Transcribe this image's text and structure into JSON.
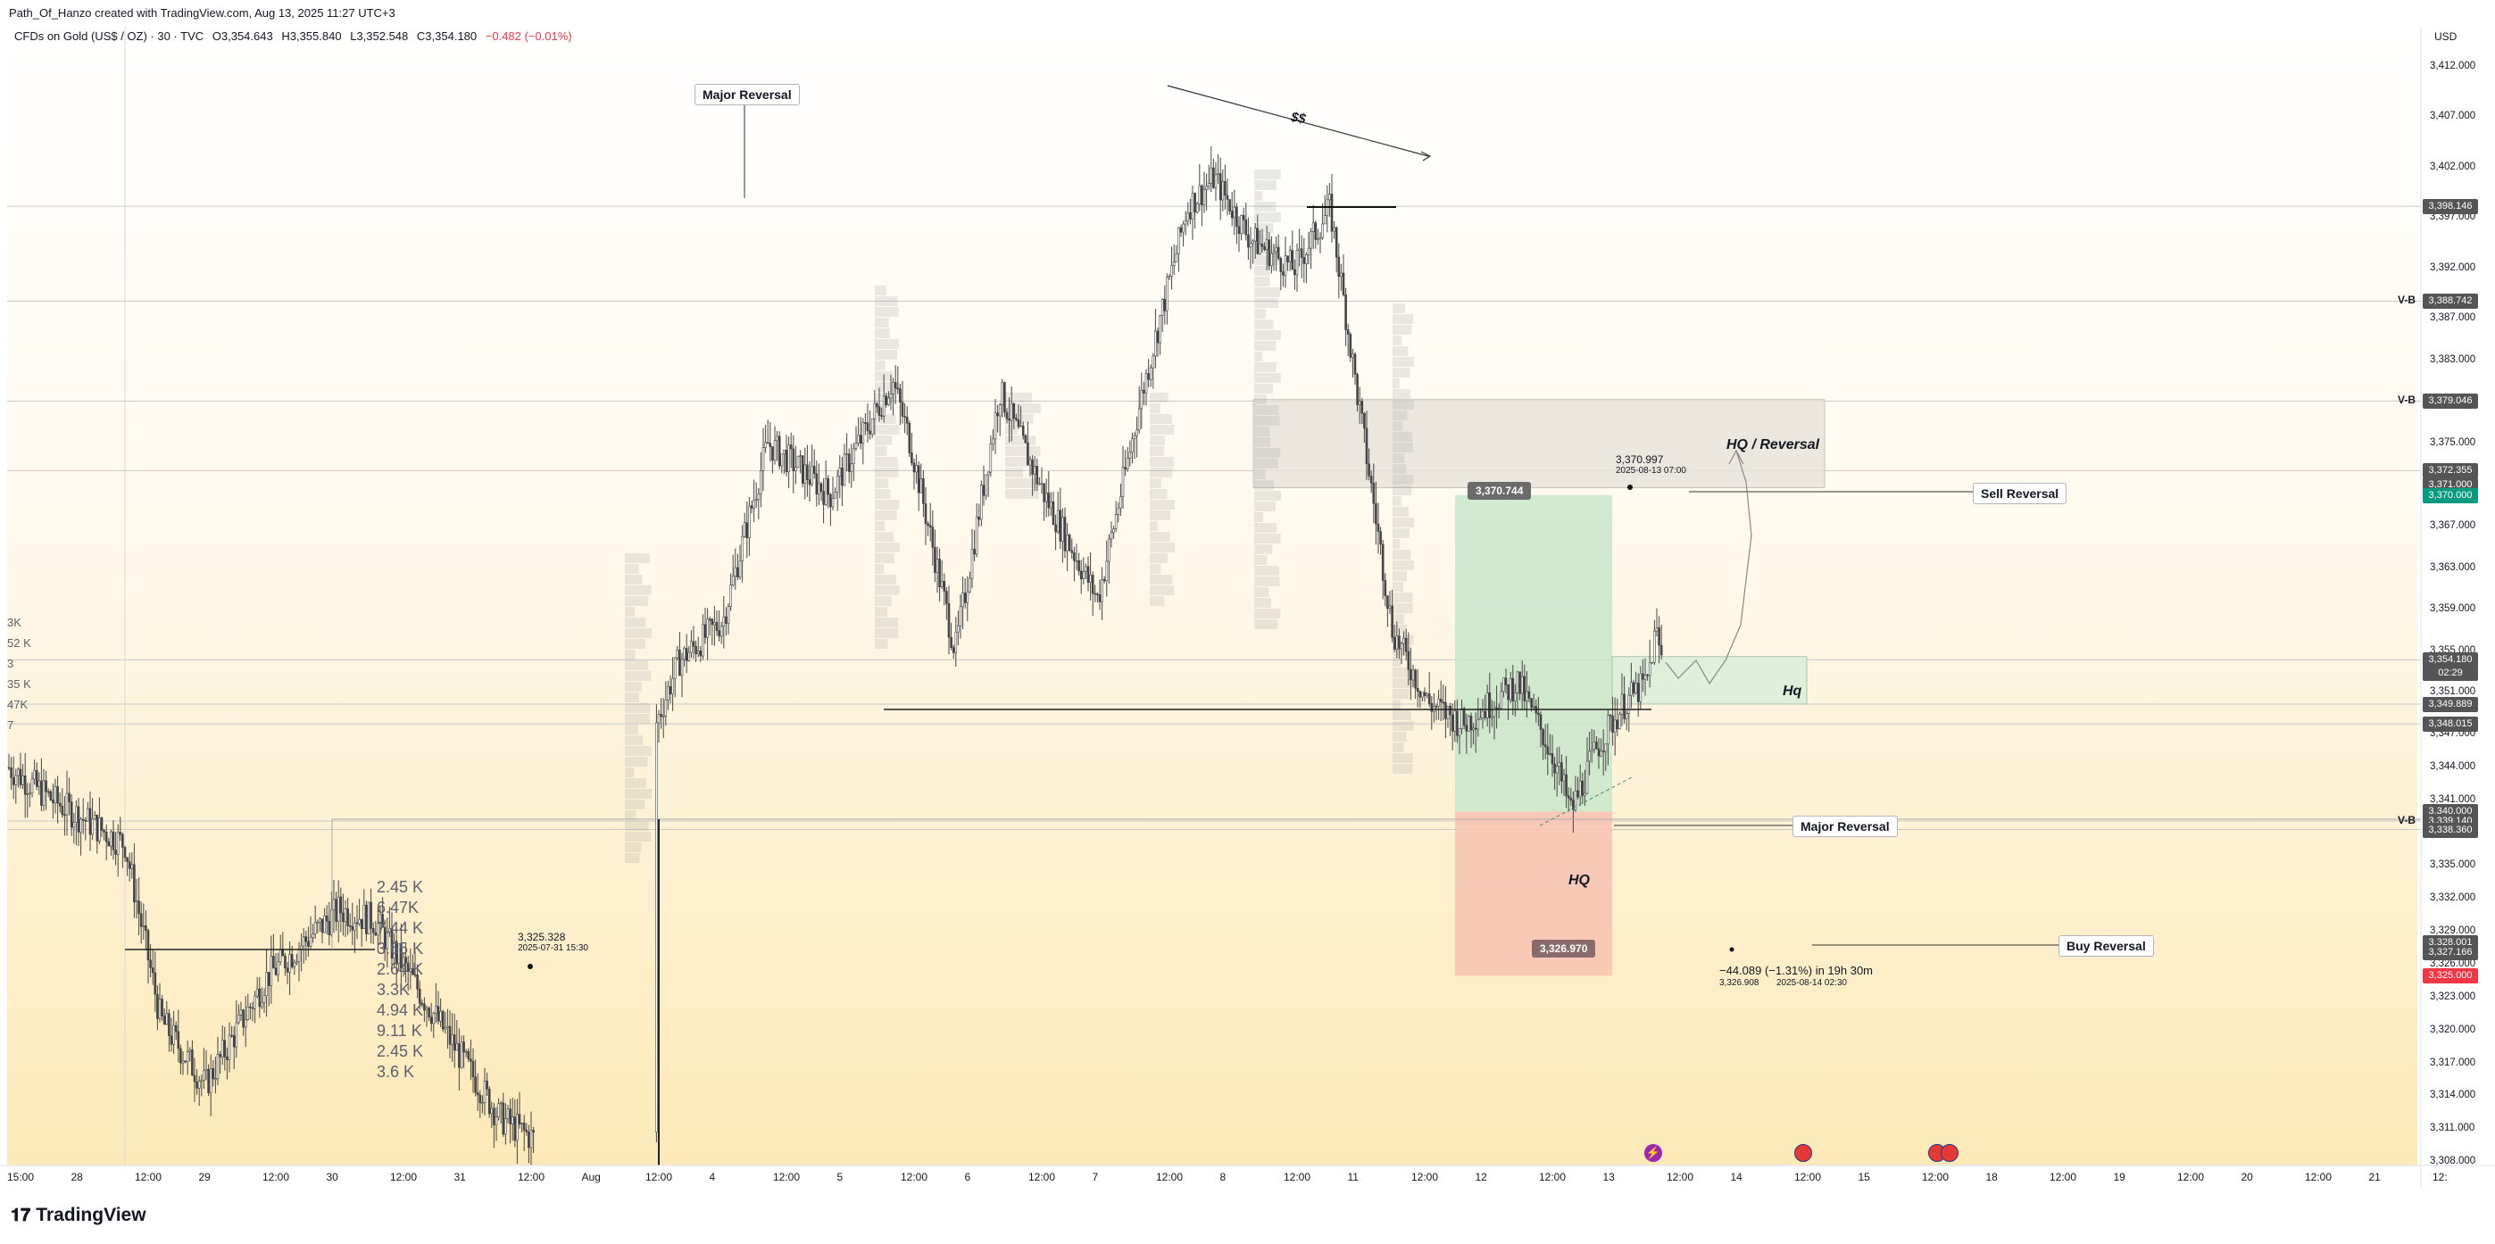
{
  "header": {
    "credit": "Path_Of_Hanzo created with TradingView.com, Aug 13, 2025 11:27 UTC+3"
  },
  "legend": {
    "symbol": "CFDs on Gold (US$ / OZ) · 30 · TVC",
    "open": "O3,354.643",
    "high": "H3,355.840",
    "low": "L3,352.548",
    "close": "C3,354.180",
    "change": "−0.482 (−0.01%)"
  },
  "footer": {
    "brand": "TradingView"
  },
  "colors": {
    "candle": "#444444",
    "profit_zone": "#c8e6c9",
    "loss_zone": "#f8c4b4",
    "supply_zone": "#e6e2da",
    "hq_zone": "#dbeed9",
    "bg_bottom": "#fde9b8",
    "price_up": "#089981",
    "price_down": "#f23645"
  },
  "chart_data": {
    "type": "candlestick",
    "currency": "USD",
    "ylim": [
      3306,
      3414
    ],
    "price_axis_ticks": [
      3412,
      3407,
      3402,
      3397,
      3392,
      3387,
      3383,
      3379,
      3375,
      3371,
      3367,
      3363,
      3359,
      3355,
      3351,
      3347,
      3344,
      3341,
      3338,
      3335,
      3332,
      3329,
      3326,
      3323,
      3320,
      3317,
      3314,
      3311,
      3308
    ],
    "price_axis_labels": [
      "3,412.000",
      "3,407.000",
      "3,402.000",
      "3,397.000",
      "3,392.000",
      "3,387.000",
      "3,383.000",
      "3,379.000",
      "3,375.000",
      "3,371.000",
      "3,367.000",
      "3,363.000",
      "3,359.000",
      "3,355.000",
      "3,351.000",
      "3,347.000",
      "3,344.000",
      "3,341.000",
      "3,338.000",
      "3,335.000",
      "3,332.000",
      "3,329.000",
      "3,326.000",
      "3,323.000",
      "3,320.000",
      "3,317.000",
      "3,314.000",
      "3,311.000",
      "3,308.000"
    ],
    "time_axis_labels": [
      "15:00",
      "28",
      "12:00",
      "29",
      "12:00",
      "30",
      "12:00",
      "31",
      "12:00",
      "Aug",
      "12:00",
      "4",
      "12:00",
      "5",
      "12:00",
      "6",
      "12:00",
      "7",
      "12:00",
      "8",
      "12:00",
      "11",
      "12:00",
      "12",
      "12:00",
      "13",
      "12:00",
      "14",
      "12:00",
      "15",
      "12:00",
      "18",
      "12:00",
      "19",
      "12:00",
      "20",
      "12:00",
      "21",
      "12:"
    ],
    "price_tags": [
      {
        "label": "3,398.146",
        "value": 3398.146,
        "color": "#555555"
      },
      {
        "label": "3,388.742",
        "value": 3388.742,
        "color": "#555555"
      },
      {
        "label": "3,379.046",
        "value": 3379.046,
        "color": "#555555"
      },
      {
        "label": "3,372.355",
        "value": 3372.355,
        "color": "#555555"
      },
      {
        "label": "3,371.000",
        "value": 3371.0,
        "color": "#555555"
      },
      {
        "label": "3,370.000",
        "value": 3370.0,
        "color": "#089981"
      },
      {
        "label": "3,354.180",
        "value": 3354.18,
        "color": "#555555"
      },
      {
        "label": "02:29",
        "value": 3352.9,
        "color": "#555555"
      },
      {
        "label": "3,349.889",
        "value": 3349.889,
        "color": "#555555"
      },
      {
        "label": "3,348.015",
        "value": 3348.015,
        "color": "#555555"
      },
      {
        "label": "3,340.000",
        "value": 3340.0,
        "color": "#555555"
      },
      {
        "label": "3,339.140",
        "value": 3339.14,
        "color": "#555555"
      },
      {
        "label": "3,338.360",
        "value": 3338.36,
        "color": "#555555"
      },
      {
        "label": "3,328.001",
        "value": 3328.001,
        "color": "#555555"
      },
      {
        "label": "3,327.166",
        "value": 3327.166,
        "color": "#555555"
      },
      {
        "label": "3,325.000",
        "value": 3325.0,
        "color": "#f23645"
      }
    ],
    "vb_labels": [
      {
        "label": "V-B",
        "value": 3388.742
      },
      {
        "label": "V-B",
        "value": 3379.046
      },
      {
        "label": "V-B",
        "value": 3339.14
      }
    ],
    "annotations": {
      "major_reversal_top": "Major Reversal",
      "ss": "$$",
      "hq_reversal": "HQ / Reversal",
      "sell_reversal": "Sell Reversal",
      "hq_box": "Hq",
      "major_reversal_mid": "Major Reversal",
      "hq_low": "HQ",
      "buy_reversal": "Buy Reversal",
      "entry_tag": "3,370.744",
      "target_tag": "3,326.970",
      "high_note_price": "3,370.997",
      "high_note_date": "2025-08-13 07:00",
      "low_note_price": "3,325.328",
      "low_note_date": "2025-07-31 15:30",
      "measure_main": "−44.089 (−1.31%) in 19h 30m",
      "measure_sub_price": "3,326.908",
      "measure_sub_date": "2025-08-14  02:30"
    },
    "volume_profile_labels": [
      "2.45 K",
      "6.47K",
      "7.44 K",
      "3.65 K",
      "2.64 K",
      "3.3K",
      "4.94 K",
      "9.11 K",
      "2.45 K",
      "3.6 K"
    ],
    "left_edge_labels": [
      "3K",
      "52 K",
      "3",
      "35 K",
      "47K",
      "7"
    ],
    "usd_label": "USD"
  }
}
